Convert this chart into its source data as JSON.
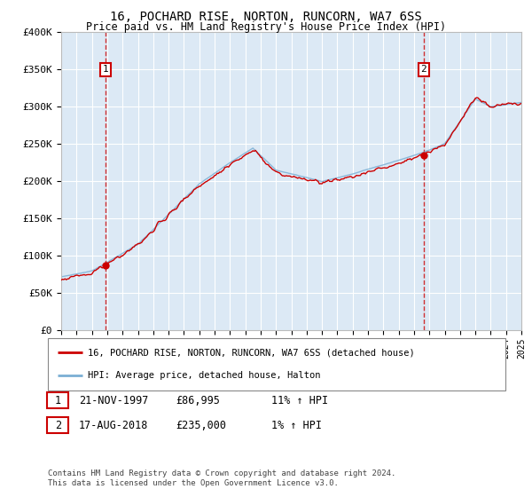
{
  "title": "16, POCHARD RISE, NORTON, RUNCORN, WA7 6SS",
  "subtitle": "Price paid vs. HM Land Registry's House Price Index (HPI)",
  "sale1_date": "21-NOV-1997",
  "sale1_price": 86995,
  "sale2_date": "17-AUG-2018",
  "sale2_price": 235000,
  "sale1_hpi_pct": "11% ↑ HPI",
  "sale2_hpi_pct": "1% ↑ HPI",
  "legend1": "16, POCHARD RISE, NORTON, RUNCORN, WA7 6SS (detached house)",
  "legend2": "HPI: Average price, detached house, Halton",
  "footer": "Contains HM Land Registry data © Crown copyright and database right 2024.\nThis data is licensed under the Open Government Licence v3.0.",
  "plot_bg": "#dce9f5",
  "red_line_color": "#cc0000",
  "blue_line_color": "#7bafd4",
  "ylim": [
    0,
    400000
  ],
  "yticks": [
    0,
    50000,
    100000,
    150000,
    200000,
    250000,
    300000,
    350000,
    400000
  ],
  "ytick_labels": [
    "£0",
    "£50K",
    "£100K",
    "£150K",
    "£200K",
    "£250K",
    "£300K",
    "£350K",
    "£400K"
  ],
  "xstart": 1995,
  "xend": 2025,
  "sale1_x": 1997.875,
  "sale2_x": 2018.625
}
